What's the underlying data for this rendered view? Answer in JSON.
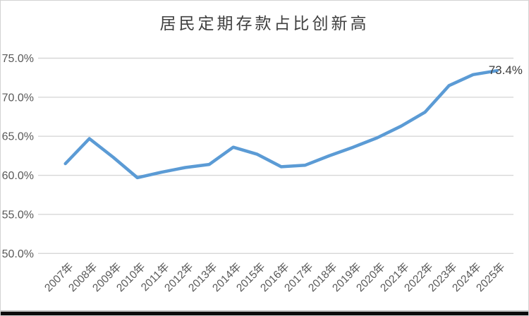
{
  "chart_data": {
    "type": "line",
    "title": "居民定期存款占比创新高",
    "categories": [
      "2007年",
      "2008年",
      "2009年",
      "2010年",
      "2011年",
      "2012年",
      "2013年",
      "2014年",
      "2015年",
      "2016年",
      "2017年",
      "2018年",
      "2019年",
      "2020年",
      "2021年",
      "2022年",
      "2023年",
      "2024年",
      "2025年"
    ],
    "series": [
      {
        "name": "居民定期存款占比",
        "values": [
          61.5,
          64.7,
          62.3,
          59.7,
          60.4,
          61.0,
          61.4,
          63.6,
          62.7,
          61.1,
          61.3,
          62.5,
          63.6,
          64.8,
          66.3,
          68.1,
          71.5,
          72.9,
          73.4
        ]
      }
    ],
    "end_label": "73.4%",
    "xlabel": "",
    "ylabel": "",
    "ylim": [
      50,
      75
    ],
    "ytick_values": [
      75,
      70,
      65,
      60,
      55,
      50
    ],
    "ytick_labels": [
      "75.0%",
      "70.0%",
      "65.0%",
      "60.0%",
      "55.0%",
      "50.0%"
    ],
    "grid": "horizontal",
    "legend": "none",
    "colors": {
      "line": "#5B9BD5",
      "grid": "#D7D7D7",
      "tick_label": "#595959",
      "title": "#404040",
      "data_label": "#3B3B3B"
    }
  }
}
